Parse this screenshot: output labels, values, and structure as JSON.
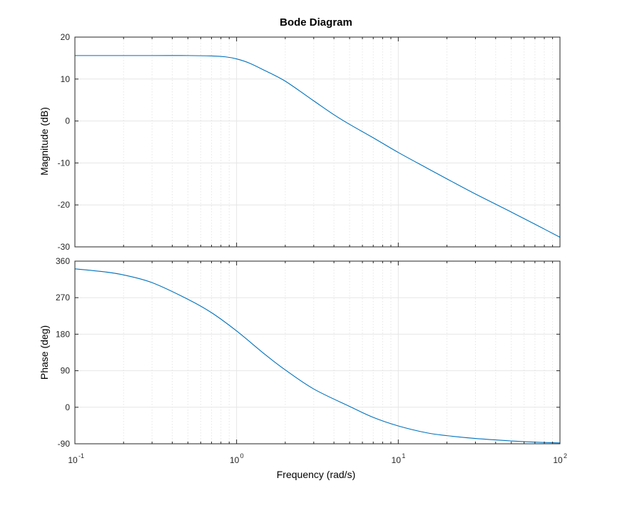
{
  "chart_data": {
    "type": "line",
    "title": "Bode Diagram",
    "xlabel": "Frequency  (rad/s)",
    "x_scale": "log",
    "xlim": [
      0.1,
      100
    ],
    "x_tick_labels": [
      {
        "base": "10",
        "exp": "-1"
      },
      {
        "base": "10",
        "exp": "0"
      },
      {
        "base": "10",
        "exp": "1"
      },
      {
        "base": "10",
        "exp": "2"
      }
    ],
    "grid": true,
    "line_color": "#0072bd",
    "grid_color": "#e6e6e6",
    "panels": [
      {
        "name": "magnitude",
        "ylabel": "Magnitude (dB)",
        "ylim": [
          -30,
          20
        ],
        "y_ticks": [
          "20",
          "10",
          "0",
          "-10",
          "-20",
          "-30"
        ],
        "x": [
          0.1,
          0.2,
          0.3,
          0.5,
          0.7,
          0.85,
          1,
          1.2,
          1.5,
          2,
          3,
          4,
          5,
          7,
          10,
          15,
          20,
          30,
          50,
          70,
          100
        ],
        "y": [
          15.6,
          15.6,
          15.6,
          15.6,
          15.5,
          15.3,
          14.8,
          13.8,
          12.0,
          9.5,
          4.8,
          1.5,
          -0.8,
          -4.0,
          -7.5,
          -11.2,
          -13.8,
          -17.4,
          -21.7,
          -24.6,
          -27.7
        ]
      },
      {
        "name": "phase",
        "ylabel": "Phase (deg)",
        "ylim": [
          -90,
          360
        ],
        "y_ticks": [
          "360",
          "270",
          "180",
          "90",
          "0",
          "-90"
        ],
        "x": [
          0.1,
          0.15,
          0.2,
          0.3,
          0.5,
          0.7,
          1,
          1.5,
          2,
          3,
          5,
          7,
          10,
          15,
          20,
          30,
          50,
          70,
          100
        ],
        "y": [
          341,
          334,
          326,
          307,
          266,
          233,
          188,
          130,
          92,
          45,
          2,
          -25,
          -46,
          -63,
          -70,
          -77,
          -83,
          -86,
          -88
        ]
      }
    ]
  }
}
